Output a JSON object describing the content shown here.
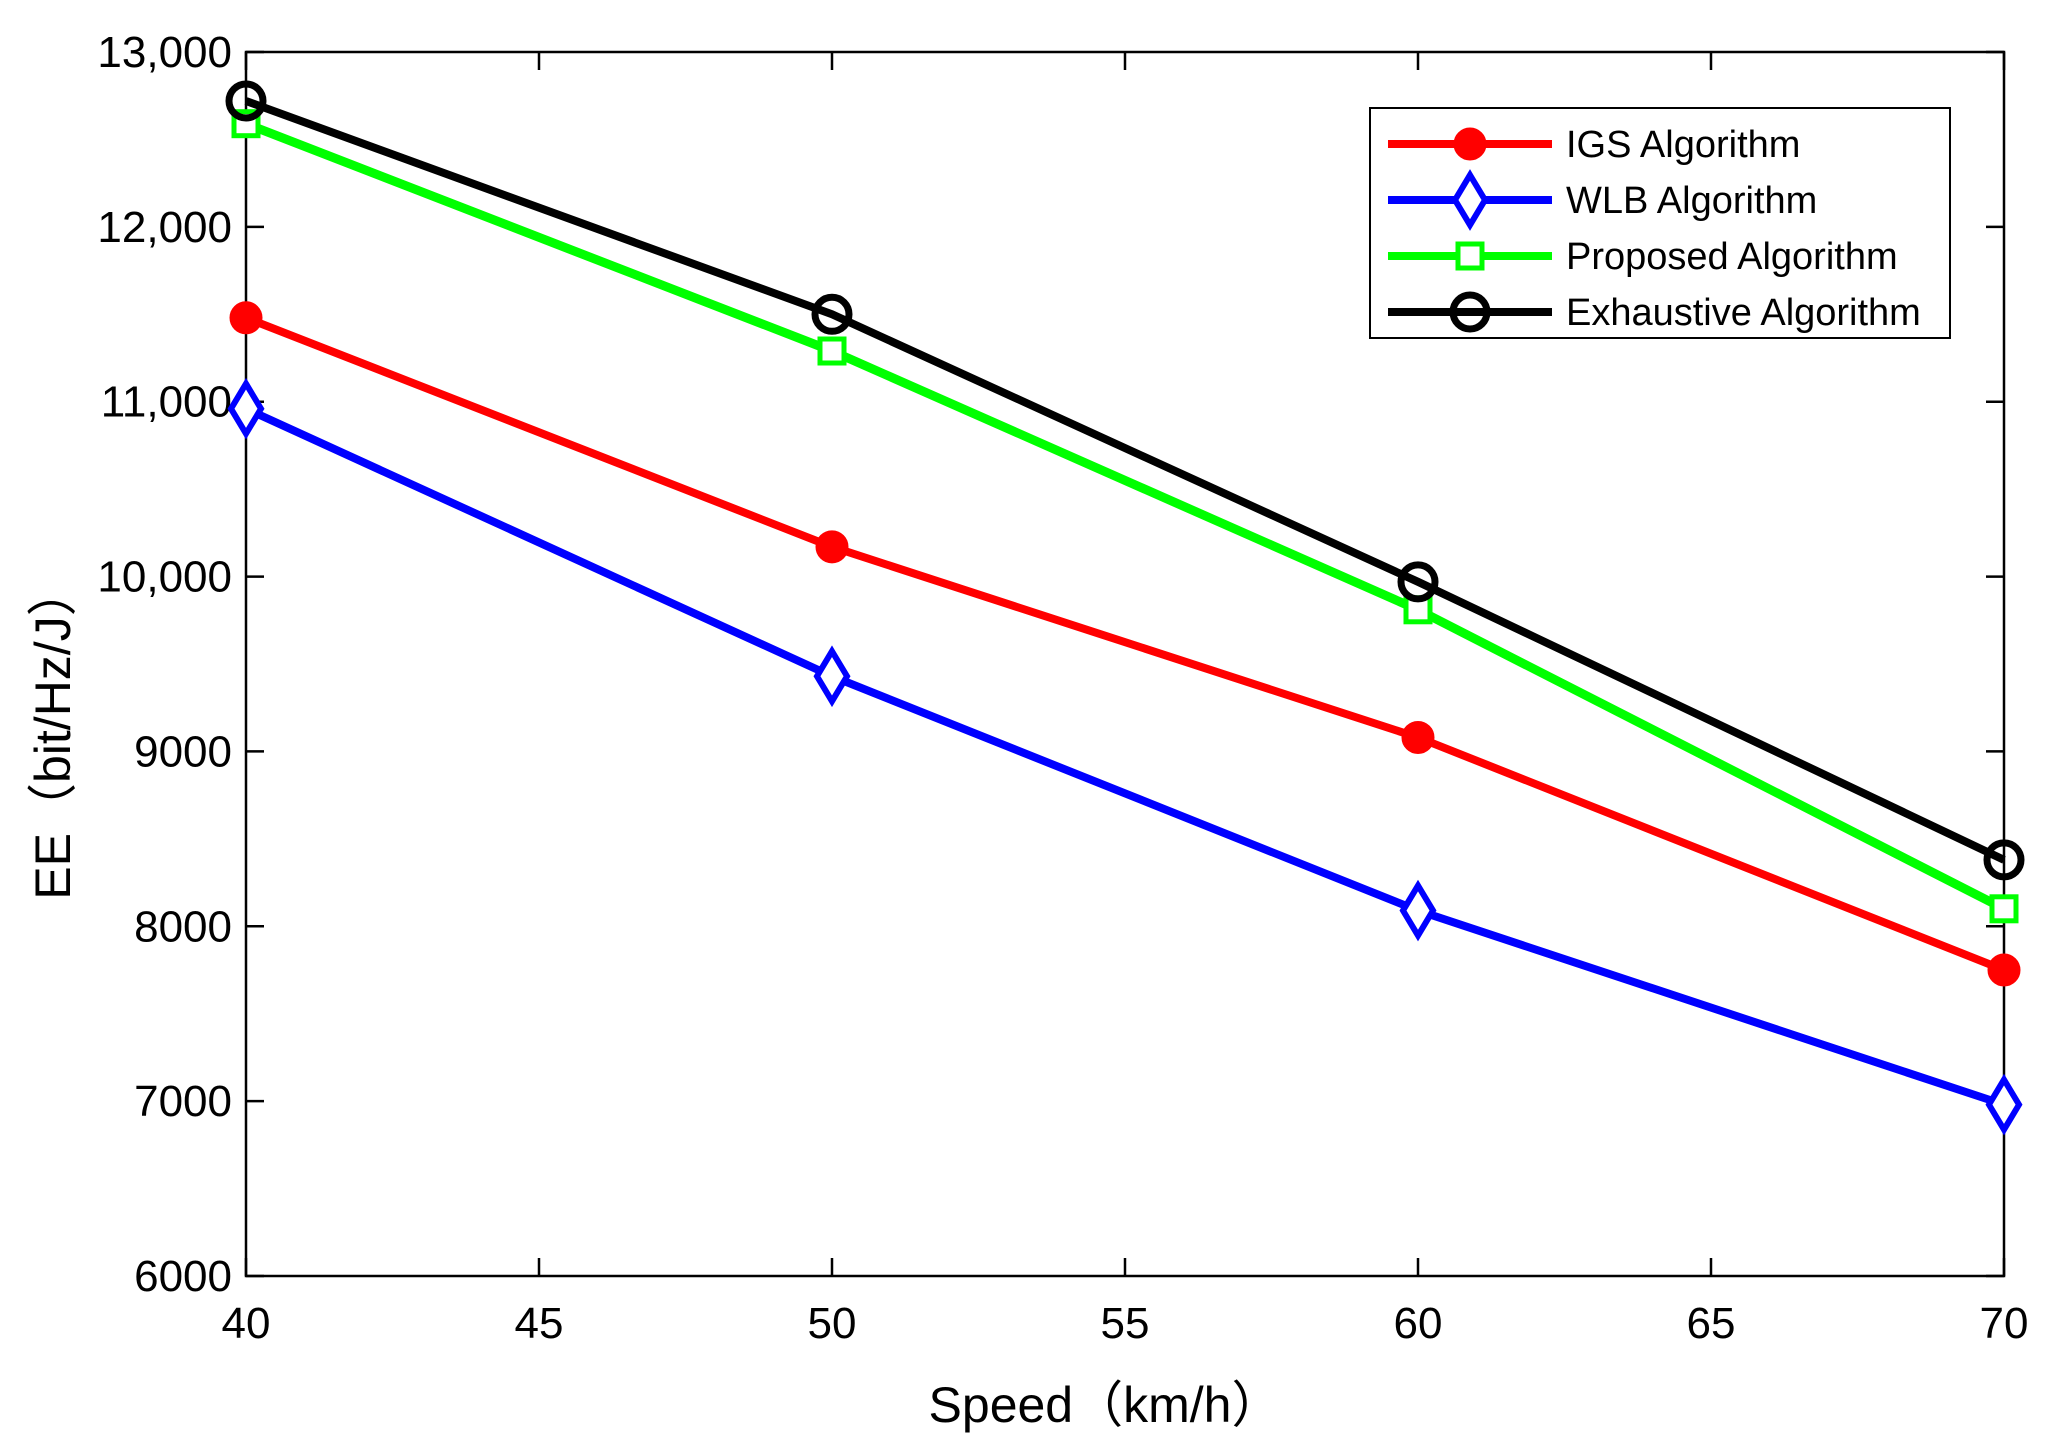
{
  "chart_data": {
    "type": "line",
    "title": "",
    "xlabel": "Speed（km/h）",
    "ylabel": "EE（bit/Hz/J）",
    "xlim": [
      40,
      70
    ],
    "ylim": [
      6000,
      13000
    ],
    "grid": false,
    "legend_position": "top-right",
    "x_ticks": [
      40,
      45,
      50,
      55,
      60,
      65,
      70
    ],
    "x_tick_labels": [
      "40",
      "45",
      "50",
      "55",
      "60",
      "65",
      "70"
    ],
    "y_ticks": [
      6000,
      7000,
      8000,
      9000,
      10000,
      11000,
      12000,
      13000
    ],
    "y_tick_labels": [
      "6000",
      "7000",
      "8000",
      "9000",
      "10,000",
      "11,000",
      "12,000",
      "13,000"
    ],
    "x": [
      40,
      50,
      60,
      70
    ],
    "series": [
      {
        "name": "IGS Algorithm",
        "color": "#ff0000",
        "marker": "filled-circle",
        "values": [
          11480,
          10170,
          9080,
          7750
        ]
      },
      {
        "name": "WLB Algorithm",
        "color": "#0000ff",
        "marker": "diamond",
        "values": [
          10960,
          9430,
          8090,
          6980
        ]
      },
      {
        "name": "Proposed Algorithm",
        "color": "#00ff00",
        "marker": "square",
        "values": [
          12590,
          11290,
          9810,
          8100
        ]
      },
      {
        "name": "Exhaustive Algorithm",
        "color": "#000000",
        "marker": "circle",
        "values": [
          12720,
          11500,
          9970,
          8380
        ]
      }
    ]
  }
}
